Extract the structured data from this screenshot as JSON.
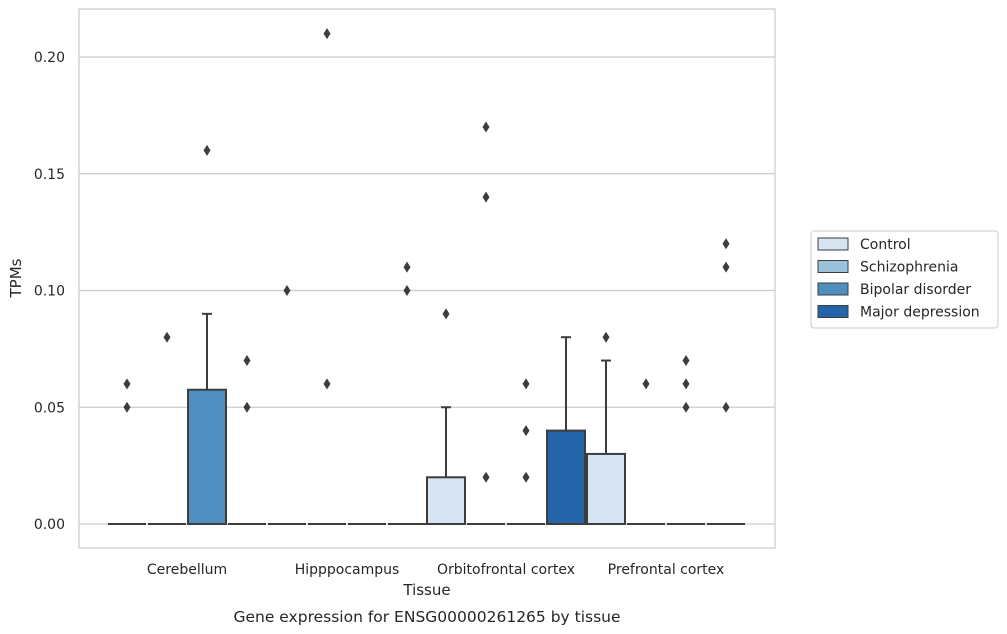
{
  "chart_data": {
    "type": "box",
    "title": "Gene expression for ENSG00000261265 by tissue",
    "xlabel": "Tissue",
    "ylabel": "TPMs",
    "ylim": [
      -0.01,
      0.22
    ],
    "yticks": [
      0.0,
      0.05,
      0.1,
      0.15,
      0.2
    ],
    "ytick_labels": [
      "0.00",
      "0.05",
      "0.10",
      "0.15",
      "0.20"
    ],
    "grid": "horizontal",
    "legend_position": "right",
    "categories": [
      "Cerebellum",
      "Hipppocampus",
      "Orbitofrontal cortex",
      "Prefrontal cortex"
    ],
    "series": [
      {
        "name": "Control",
        "color": "#d6e4f2",
        "boxes": [
          {
            "category": "Cerebellum",
            "q1": 0,
            "median": 0,
            "q3": 0,
            "whisker_low": 0,
            "whisker_high": 0,
            "outliers": [
              0.05,
              0.06
            ]
          },
          {
            "category": "Hipppocampus",
            "q1": 0,
            "median": 0,
            "q3": 0,
            "whisker_low": 0,
            "whisker_high": 0,
            "outliers": [
              0.1
            ]
          },
          {
            "category": "Orbitofrontal cortex",
            "q1": 0,
            "median": 0,
            "q3": 0.02,
            "whisker_low": 0,
            "whisker_high": 0.05,
            "outliers": [
              0.09
            ]
          },
          {
            "category": "Prefrontal cortex",
            "q1": 0,
            "median": 0,
            "q3": 0.03,
            "whisker_low": 0,
            "whisker_high": 0.07,
            "outliers": [
              0.08
            ]
          }
        ]
      },
      {
        "name": "Schizophrenia",
        "color": "#9ac2dd",
        "boxes": [
          {
            "category": "Cerebellum",
            "q1": 0,
            "median": 0,
            "q3": 0,
            "whisker_low": 0,
            "whisker_high": 0,
            "outliers": [
              0.08
            ]
          },
          {
            "category": "Hipppocampus",
            "q1": 0,
            "median": 0,
            "q3": 0,
            "whisker_low": 0,
            "whisker_high": 0,
            "outliers": [
              0.06,
              0.21
            ]
          },
          {
            "category": "Orbitofrontal cortex",
            "q1": 0,
            "median": 0,
            "q3": 0,
            "whisker_low": 0,
            "whisker_high": 0,
            "outliers": [
              0.02,
              0.14,
              0.17
            ]
          },
          {
            "category": "Prefrontal cortex",
            "q1": 0,
            "median": 0,
            "q3": 0,
            "whisker_low": 0,
            "whisker_high": 0,
            "outliers": [
              0.06
            ]
          }
        ]
      },
      {
        "name": "Bipolar disorder",
        "color": "#4f8fc0",
        "boxes": [
          {
            "category": "Cerebellum",
            "q1": 0,
            "median": 0,
            "q3": 0.0575,
            "whisker_low": 0,
            "whisker_high": 0.09,
            "outliers": [
              0.16
            ]
          },
          {
            "category": "Hipppocampus",
            "q1": 0,
            "median": 0,
            "q3": 0,
            "whisker_low": 0,
            "whisker_high": 0,
            "outliers": []
          },
          {
            "category": "Orbitofrontal cortex",
            "q1": 0,
            "median": 0,
            "q3": 0,
            "whisker_low": 0,
            "whisker_high": 0,
            "outliers": [
              0.02,
              0.04,
              0.06
            ]
          },
          {
            "category": "Prefrontal cortex",
            "q1": 0,
            "median": 0,
            "q3": 0,
            "whisker_low": 0,
            "whisker_high": 0,
            "outliers": [
              0.05,
              0.06,
              0.07
            ]
          }
        ]
      },
      {
        "name": "Major depression",
        "color": "#2464a8",
        "boxes": [
          {
            "category": "Cerebellum",
            "q1": 0,
            "median": 0,
            "q3": 0,
            "whisker_low": 0,
            "whisker_high": 0,
            "outliers": [
              0.05,
              0.07
            ]
          },
          {
            "category": "Hipppocampus",
            "q1": 0,
            "median": 0,
            "q3": 0,
            "whisker_low": 0,
            "whisker_high": 0,
            "outliers": [
              0.1,
              0.11
            ]
          },
          {
            "category": "Orbitofrontal cortex",
            "q1": 0,
            "median": 0,
            "q3": 0.04,
            "whisker_low": 0,
            "whisker_high": 0.08,
            "outliers": []
          },
          {
            "category": "Prefrontal cortex",
            "q1": 0,
            "median": 0,
            "q3": 0,
            "whisker_low": 0,
            "whisker_high": 0,
            "outliers": [
              0.05,
              0.11,
              0.12
            ]
          }
        ]
      }
    ]
  },
  "colors": {
    "grid": "#cccccc",
    "frame": "#cccccc",
    "box_edge": "#3d3d3d",
    "outlier": "#3d3d3d"
  }
}
